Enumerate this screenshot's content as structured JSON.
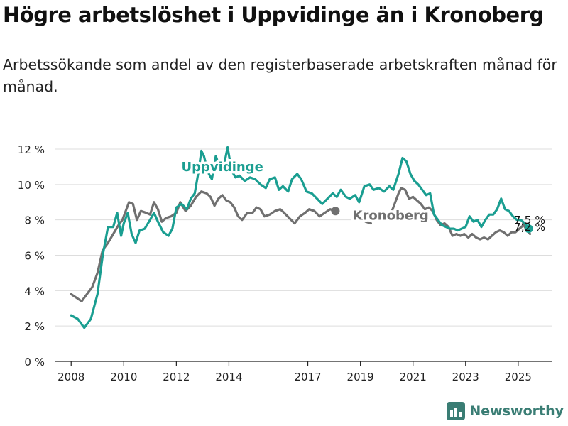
{
  "title": "Högre arbetslöshet i Uppvidinge än i Kronoberg",
  "subtitle": "Arbetssökande som andel av den registerbaserade arbetskraften månad för månad.",
  "brand": {
    "label": "Newsworthy",
    "icon": "newsworthy-logo-icon"
  },
  "colors": {
    "uppvidinge": "#1a9e91",
    "kronoberg": "#707070",
    "grid": "#dddddd",
    "axis": "#222222",
    "brand": "#3a7d74"
  },
  "chart_data": {
    "type": "line",
    "title": "Högre arbetslöshet i Uppvidinge än i Kronoberg",
    "subtitle": "Arbetssökande som andel av den registerbaserade arbetskraften månad för månad.",
    "x_ticks": [
      2008,
      2010,
      2012,
      2014,
      2017,
      2019,
      2021,
      2023,
      2025
    ],
    "y_ticks": [
      0,
      2,
      4,
      6,
      8,
      10,
      12
    ],
    "y_tick_labels": [
      "0 %",
      "2 %",
      "4 %",
      "6 %",
      "8 %",
      "10 %",
      "12 %"
    ],
    "xlim": [
      2007.4,
      2026.3
    ],
    "ylim": [
      0,
      12.5
    ],
    "grid": true,
    "legend": "inline labels",
    "series": [
      {
        "name": "Uppvidinge",
        "color": "#1a9e91",
        "end_label": "7,5 %",
        "points": [
          [
            2008.0,
            2.6
          ],
          [
            2008.25,
            2.4
          ],
          [
            2008.5,
            1.9
          ],
          [
            2008.75,
            2.4
          ],
          [
            2009.0,
            3.8
          ],
          [
            2009.2,
            6.0
          ],
          [
            2009.4,
            7.6
          ],
          [
            2009.6,
            7.6
          ],
          [
            2009.75,
            8.4
          ],
          [
            2009.9,
            7.1
          ],
          [
            2010.0,
            7.8
          ],
          [
            2010.15,
            8.4
          ],
          [
            2010.3,
            7.2
          ],
          [
            2010.45,
            6.7
          ],
          [
            2010.6,
            7.4
          ],
          [
            2010.8,
            7.5
          ],
          [
            2011.0,
            8.0
          ],
          [
            2011.15,
            8.4
          ],
          [
            2011.3,
            7.9
          ],
          [
            2011.5,
            7.3
          ],
          [
            2011.7,
            7.1
          ],
          [
            2011.85,
            7.5
          ],
          [
            2012.0,
            8.7
          ],
          [
            2012.2,
            8.9
          ],
          [
            2012.4,
            8.6
          ],
          [
            2012.55,
            9.2
          ],
          [
            2012.7,
            9.5
          ],
          [
            2012.85,
            10.8
          ],
          [
            2012.95,
            11.9
          ],
          [
            2013.05,
            11.6
          ],
          [
            2013.2,
            10.7
          ],
          [
            2013.35,
            10.3
          ],
          [
            2013.5,
            11.6
          ],
          [
            2013.65,
            11.0
          ],
          [
            2013.8,
            11.0
          ],
          [
            2013.95,
            12.1
          ],
          [
            2014.1,
            10.8
          ],
          [
            2014.25,
            10.4
          ],
          [
            2014.4,
            10.5
          ],
          [
            2014.6,
            10.2
          ],
          [
            2014.8,
            10.4
          ],
          [
            2015.0,
            10.3
          ],
          [
            2015.2,
            10.0
          ],
          [
            2015.4,
            9.8
          ],
          [
            2015.55,
            10.3
          ],
          [
            2015.75,
            10.4
          ],
          [
            2015.9,
            9.7
          ],
          [
            2016.05,
            9.9
          ],
          [
            2016.25,
            9.6
          ],
          [
            2016.4,
            10.3
          ],
          [
            2016.6,
            10.6
          ],
          [
            2016.75,
            10.3
          ],
          [
            2016.95,
            9.6
          ],
          [
            2017.15,
            9.5
          ],
          [
            2017.35,
            9.2
          ],
          [
            2017.55,
            8.9
          ],
          [
            2017.75,
            9.2
          ],
          [
            2017.95,
            9.5
          ],
          [
            2018.1,
            9.3
          ],
          [
            2018.25,
            9.7
          ],
          [
            2018.45,
            9.3
          ],
          [
            2018.6,
            9.2
          ],
          [
            2018.8,
            9.4
          ],
          [
            2018.95,
            9.0
          ],
          [
            2019.15,
            9.9
          ],
          [
            2019.35,
            10.0
          ],
          [
            2019.5,
            9.7
          ],
          [
            2019.7,
            9.8
          ],
          [
            2019.9,
            9.6
          ],
          [
            2020.1,
            9.9
          ],
          [
            2020.25,
            9.7
          ],
          [
            2020.45,
            10.6
          ],
          [
            2020.6,
            11.5
          ],
          [
            2020.75,
            11.3
          ],
          [
            2020.9,
            10.6
          ],
          [
            2021.05,
            10.2
          ],
          [
            2021.2,
            10.0
          ],
          [
            2021.35,
            9.7
          ],
          [
            2021.5,
            9.4
          ],
          [
            2021.65,
            9.5
          ],
          [
            2021.8,
            8.3
          ],
          [
            2021.95,
            8.0
          ],
          [
            2022.1,
            7.7
          ],
          [
            2022.25,
            7.6
          ],
          [
            2022.4,
            7.5
          ],
          [
            2022.55,
            7.5
          ],
          [
            2022.7,
            7.4
          ],
          [
            2022.85,
            7.5
          ],
          [
            2023.0,
            7.6
          ],
          [
            2023.15,
            8.2
          ],
          [
            2023.3,
            7.9
          ],
          [
            2023.45,
            8.0
          ],
          [
            2023.6,
            7.6
          ],
          [
            2023.75,
            8.0
          ],
          [
            2023.9,
            8.3
          ],
          [
            2024.05,
            8.3
          ],
          [
            2024.2,
            8.6
          ],
          [
            2024.35,
            9.2
          ],
          [
            2024.5,
            8.6
          ],
          [
            2024.65,
            8.5
          ],
          [
            2024.8,
            8.2
          ],
          [
            2024.95,
            8.0
          ],
          [
            2025.1,
            8.0
          ],
          [
            2025.25,
            7.8
          ],
          [
            2025.4,
            7.5
          ]
        ]
      },
      {
        "name": "Kronoberg",
        "color": "#707070",
        "end_label": "7,2 %",
        "points": [
          [
            2008.0,
            3.8
          ],
          [
            2008.2,
            3.6
          ],
          [
            2008.4,
            3.4
          ],
          [
            2008.6,
            3.8
          ],
          [
            2008.8,
            4.2
          ],
          [
            2009.0,
            5.0
          ],
          [
            2009.2,
            6.3
          ],
          [
            2009.4,
            6.7
          ],
          [
            2009.6,
            7.2
          ],
          [
            2009.8,
            7.7
          ],
          [
            2009.95,
            8.0
          ],
          [
            2010.1,
            8.6
          ],
          [
            2010.2,
            9.0
          ],
          [
            2010.35,
            8.9
          ],
          [
            2010.5,
            8.0
          ],
          [
            2010.65,
            8.5
          ],
          [
            2010.85,
            8.4
          ],
          [
            2011.0,
            8.3
          ],
          [
            2011.15,
            9.0
          ],
          [
            2011.3,
            8.6
          ],
          [
            2011.45,
            7.9
          ],
          [
            2011.6,
            8.1
          ],
          [
            2011.8,
            8.2
          ],
          [
            2012.0,
            8.4
          ],
          [
            2012.15,
            9.0
          ],
          [
            2012.35,
            8.5
          ],
          [
            2012.55,
            8.8
          ],
          [
            2012.75,
            9.3
          ],
          [
            2012.95,
            9.6
          ],
          [
            2013.15,
            9.5
          ],
          [
            2013.3,
            9.3
          ],
          [
            2013.45,
            8.8
          ],
          [
            2013.6,
            9.2
          ],
          [
            2013.75,
            9.4
          ],
          [
            2013.9,
            9.1
          ],
          [
            2014.05,
            9.0
          ],
          [
            2014.2,
            8.7
          ],
          [
            2014.35,
            8.2
          ],
          [
            2014.5,
            8.0
          ],
          [
            2014.7,
            8.4
          ],
          [
            2014.9,
            8.4
          ],
          [
            2015.05,
            8.7
          ],
          [
            2015.2,
            8.6
          ],
          [
            2015.35,
            8.2
          ],
          [
            2015.55,
            8.3
          ],
          [
            2015.75,
            8.5
          ],
          [
            2015.95,
            8.6
          ],
          [
            2016.1,
            8.4
          ],
          [
            2016.3,
            8.1
          ],
          [
            2016.5,
            7.8
          ],
          [
            2016.7,
            8.2
          ],
          [
            2016.9,
            8.4
          ],
          [
            2017.05,
            8.6
          ],
          [
            2017.25,
            8.5
          ],
          [
            2017.45,
            8.2
          ],
          [
            2017.65,
            8.4
          ],
          [
            2017.85,
            8.6
          ],
          [
            2018.05,
            8.5
          ]
        ]
      },
      {
        "name": "Kronoberg",
        "color": "#707070",
        "points": [
          [
            2019.2,
            7.9
          ],
          [
            2019.4,
            7.8
          ]
        ]
      },
      {
        "name": "Kronoberg",
        "color": "#707070",
        "points": [
          [
            2020.15,
            8.3
          ],
          [
            2020.3,
            8.9
          ],
          [
            2020.45,
            9.5
          ],
          [
            2020.55,
            9.8
          ],
          [
            2020.7,
            9.7
          ],
          [
            2020.85,
            9.2
          ],
          [
            2021.0,
            9.3
          ],
          [
            2021.15,
            9.1
          ],
          [
            2021.3,
            8.9
          ],
          [
            2021.45,
            8.6
          ],
          [
            2021.6,
            8.7
          ],
          [
            2021.75,
            8.5
          ],
          [
            2021.9,
            8.0
          ],
          [
            2022.05,
            7.7
          ],
          [
            2022.2,
            7.8
          ],
          [
            2022.35,
            7.6
          ],
          [
            2022.5,
            7.1
          ],
          [
            2022.65,
            7.2
          ],
          [
            2022.8,
            7.1
          ],
          [
            2022.95,
            7.2
          ],
          [
            2023.1,
            7.0
          ],
          [
            2023.25,
            7.2
          ],
          [
            2023.4,
            7.0
          ],
          [
            2023.55,
            6.9
          ],
          [
            2023.7,
            7.0
          ],
          [
            2023.85,
            6.9
          ],
          [
            2024.0,
            7.1
          ],
          [
            2024.15,
            7.3
          ],
          [
            2024.3,
            7.4
          ],
          [
            2024.45,
            7.3
          ],
          [
            2024.6,
            7.1
          ],
          [
            2024.75,
            7.3
          ],
          [
            2024.9,
            7.3
          ],
          [
            2025.05,
            7.5
          ],
          [
            2025.2,
            7.7
          ],
          [
            2025.35,
            7.4
          ],
          [
            2025.45,
            7.2
          ]
        ]
      }
    ],
    "annotations": [
      {
        "label": "Uppvidinge",
        "x": 2013.75,
        "y": 11.0
      },
      {
        "label": "Kronoberg",
        "x": 2020.15,
        "y": 8.25
      }
    ]
  }
}
